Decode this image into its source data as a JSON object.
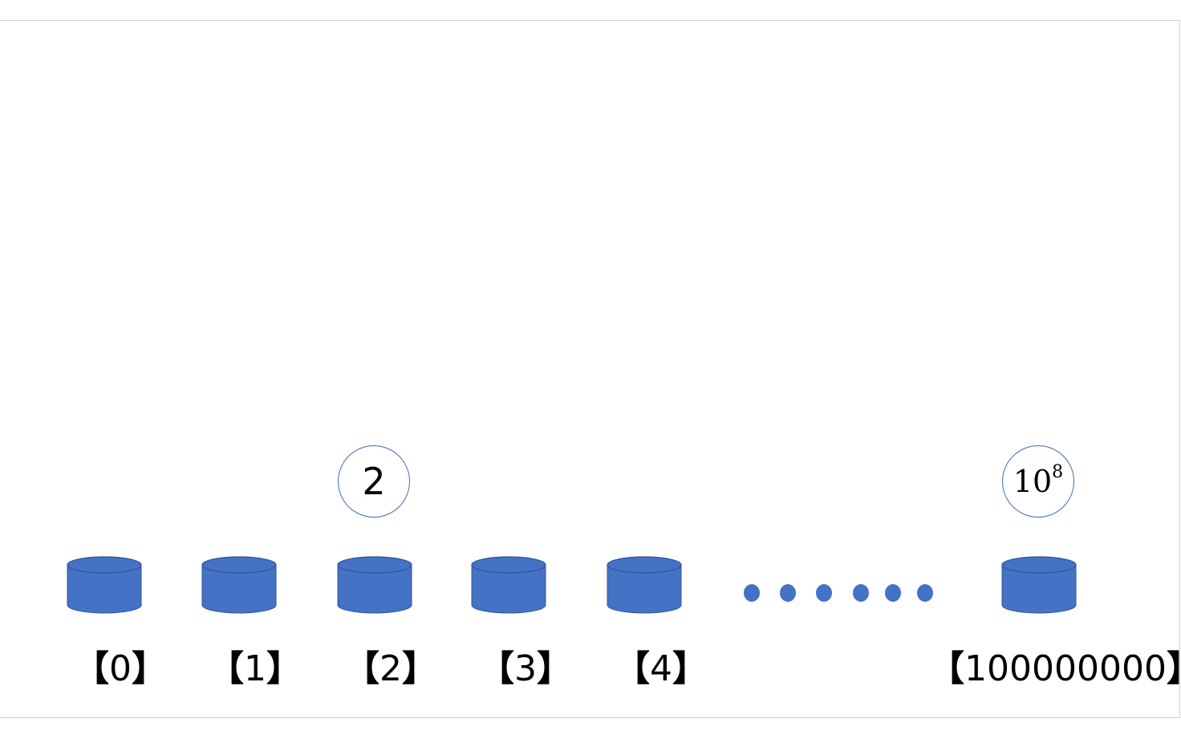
{
  "colors": {
    "bucket_fill": "#4472c4",
    "bucket_stroke": "#2f5597",
    "circle_border": "#3f6db3"
  },
  "buckets": [
    {
      "index_label": "0"
    },
    {
      "index_label": "1"
    },
    {
      "index_label": "2"
    },
    {
      "index_label": "3"
    },
    {
      "index_label": "4"
    },
    {
      "index_label": "100000000"
    }
  ],
  "label_brackets": {
    "open": "【",
    "close": "】"
  },
  "ellipsis_dots": 6,
  "values": [
    {
      "bucket": "2",
      "text": "2"
    },
    {
      "bucket": "100000000",
      "base": "10",
      "exponent": "8"
    }
  ]
}
